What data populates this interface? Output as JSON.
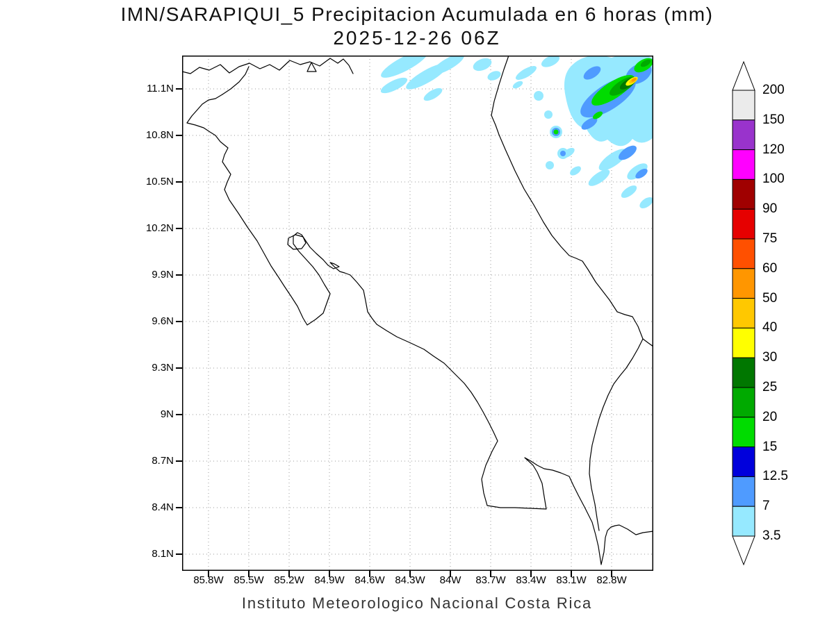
{
  "title": {
    "line1": "IMN/SARAPIQUI_5 Precipitacion Acumulada en 6 horas (mm)",
    "line2": "2025-12-26 06Z"
  },
  "caption": "Instituto Meteorologico Nacional Costa Rica",
  "map": {
    "lat_labels": [
      "11.1N",
      "10.8N",
      "10.5N",
      "10.2N",
      "9.9N",
      "9.6N",
      "9.3N",
      "9N",
      "8.7N",
      "8.4N",
      "8.1N"
    ],
    "lon_labels": [
      "85.8W",
      "85.5W",
      "85.2W",
      "84.9W",
      "84.6W",
      "84.3W",
      "84W",
      "83.7W",
      "83.4W",
      "83.1W",
      "82.8W"
    ],
    "region": "Costa Rica coastline with dotted lat/lon grid",
    "field": "6-hour accumulated precipitation shading over the Caribbean / northeast area"
  },
  "colorbar": {
    "boundary_labels": [
      "200",
      "150",
      "120",
      "100",
      "90",
      "75",
      "60",
      "50",
      "40",
      "30",
      "25",
      "20",
      "15",
      "12.5",
      "7",
      "3.5"
    ],
    "segment_colors_top_to_bottom": [
      "#ebebeb",
      "#9933cc",
      "#ff00ff",
      "#a00000",
      "#e60000",
      "#ff5000",
      "#ff9600",
      "#ffc800",
      "#ffff00",
      "#007700",
      "#00aa00",
      "#00dc00",
      "#0000dc",
      "#4f9bff",
      "#96e9ff"
    ],
    "above_max_color": "#ffffff",
    "below_min_color": "#ffffff"
  },
  "palette": {
    "light_cyan": "#96e9ff",
    "sky_blue": "#4f9bff",
    "blue": "#0000dc",
    "bright_green": "#00dc00",
    "mid_green": "#00aa00",
    "dark_green": "#007700",
    "yellow": "#ffff00",
    "gold": "#ffc800",
    "orange": "#ff9600",
    "coastline": "#000000",
    "grid": "#9a9a9a"
  }
}
